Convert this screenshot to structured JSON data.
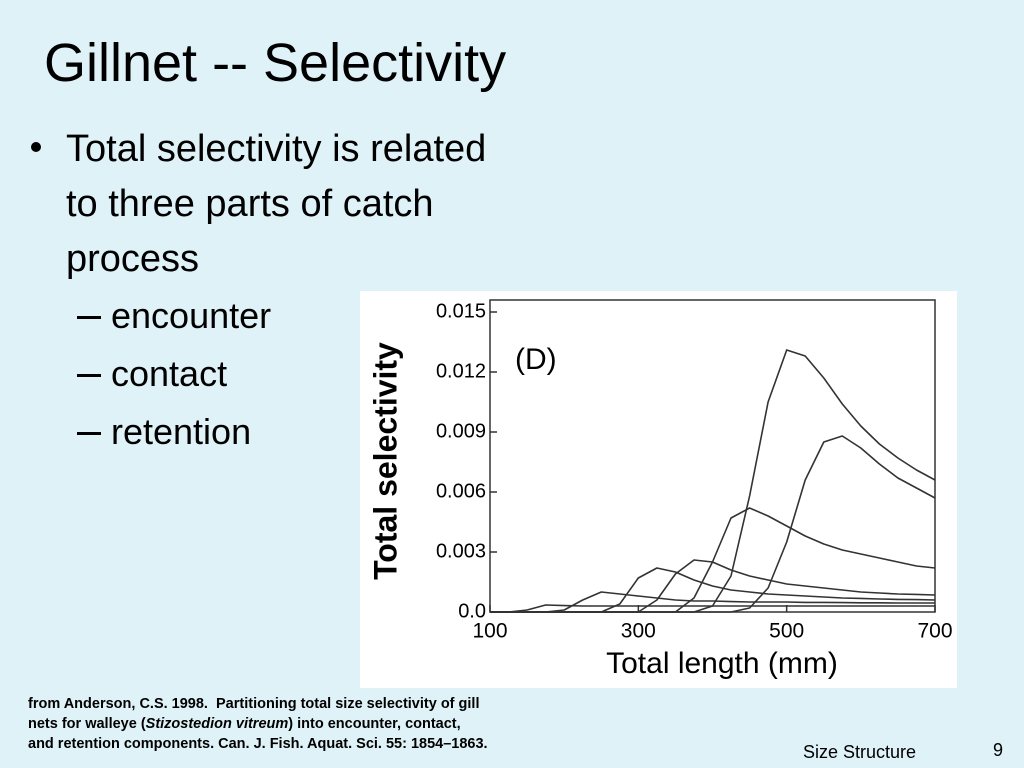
{
  "title": "Gillnet -- Selectivity",
  "bullets": [
    "Total selectivity is related to three parts of catch process"
  ],
  "sub_bullets": [
    "encounter",
    "contact",
    "retention"
  ],
  "citation": [
    "from Anderson, C.S. 1998.  Partitioning total size selectivity of gill",
    "nets for walleye (",
    "Stizostedion vitreum",
    ") into encounter, contact,",
    "and retention components. Can. J. Fish. Aquat. Sci. 55: 1854–1863."
  ],
  "footer": "Size Structure",
  "page_number": "9",
  "chart_data": {
    "type": "line",
    "annotation": "(D)",
    "x_label": "Total length (mm)",
    "y_label": "Total selectivity",
    "x": [
      100,
      125,
      150,
      175,
      200,
      225,
      250,
      275,
      300,
      325,
      350,
      375,
      400,
      425,
      450,
      475,
      500,
      525,
      550,
      575,
      600,
      625,
      650,
      675,
      700
    ],
    "series": [
      {
        "color": "#333333",
        "values": [
          0,
          0,
          0.0001,
          0.00035,
          0.00032,
          0.0003,
          0.0003,
          0.0003,
          0.0003,
          0.0003,
          0.0003,
          0.0003,
          0.0003,
          0.0003,
          0.0003,
          0.0003,
          0.0003,
          0.0003,
          0.0003,
          0.0003,
          0.0003,
          0.0003,
          0.0003,
          0.0003,
          0.0003
        ]
      },
      {
        "color": "#333333",
        "values": [
          0,
          0,
          0,
          0,
          0.0001,
          0.0006,
          0.001,
          0.0009,
          0.0008,
          0.0007,
          0.0006,
          0.00055,
          0.00055,
          0.00052,
          0.0005,
          0.0005,
          0.0005,
          0.00048,
          0.00048,
          0.00047,
          0.00046,
          0.00046,
          0.00045,
          0.00045,
          0.00045
        ]
      },
      {
        "color": "#333333",
        "values": [
          0,
          0,
          0,
          0,
          0,
          0,
          0,
          0.0004,
          0.0017,
          0.0022,
          0.002,
          0.0016,
          0.0013,
          0.0011,
          0.001,
          0.0009,
          0.00085,
          0.0008,
          0.00075,
          0.0007,
          0.00068,
          0.00065,
          0.00063,
          0.00062,
          0.0006
        ]
      },
      {
        "color": "#333333",
        "values": [
          0,
          0,
          0,
          0,
          0,
          0,
          0,
          0,
          0,
          0.0006,
          0.0019,
          0.0026,
          0.0025,
          0.0021,
          0.0018,
          0.0016,
          0.0014,
          0.0013,
          0.0012,
          0.0011,
          0.001,
          0.00095,
          0.0009,
          0.00088,
          0.00085
        ]
      },
      {
        "color": "#333333",
        "values": [
          0,
          0,
          0,
          0,
          0,
          0,
          0,
          0,
          0,
          0,
          0,
          0.0007,
          0.0025,
          0.0047,
          0.0052,
          0.0048,
          0.0043,
          0.0038,
          0.0034,
          0.0031,
          0.0029,
          0.0027,
          0.0025,
          0.0023,
          0.0022
        ]
      },
      {
        "color": "#333333",
        "values": [
          0,
          0,
          0,
          0,
          0,
          0,
          0,
          0,
          0,
          0,
          0,
          0,
          0.0003,
          0.0018,
          0.0058,
          0.0105,
          0.0131,
          0.0128,
          0.0117,
          0.0104,
          0.0093,
          0.0084,
          0.0077,
          0.0071,
          0.0066
        ]
      },
      {
        "color": "#333333",
        "values": [
          0,
          0,
          0,
          0,
          0,
          0,
          0,
          0,
          0,
          0,
          0,
          0,
          0,
          0,
          0.0002,
          0.0012,
          0.0035,
          0.0066,
          0.0085,
          0.0088,
          0.0082,
          0.0074,
          0.0067,
          0.0062,
          0.0057
        ]
      }
    ],
    "xlim": [
      100,
      700
    ],
    "xticks": [
      100,
      300,
      500,
      700
    ],
    "ylim": [
      0,
      0.015
    ],
    "yticks": [
      {
        "value": 0,
        "label": "0.0"
      },
      0.003,
      0.006,
      0.009,
      0.012,
      0.015
    ]
  }
}
